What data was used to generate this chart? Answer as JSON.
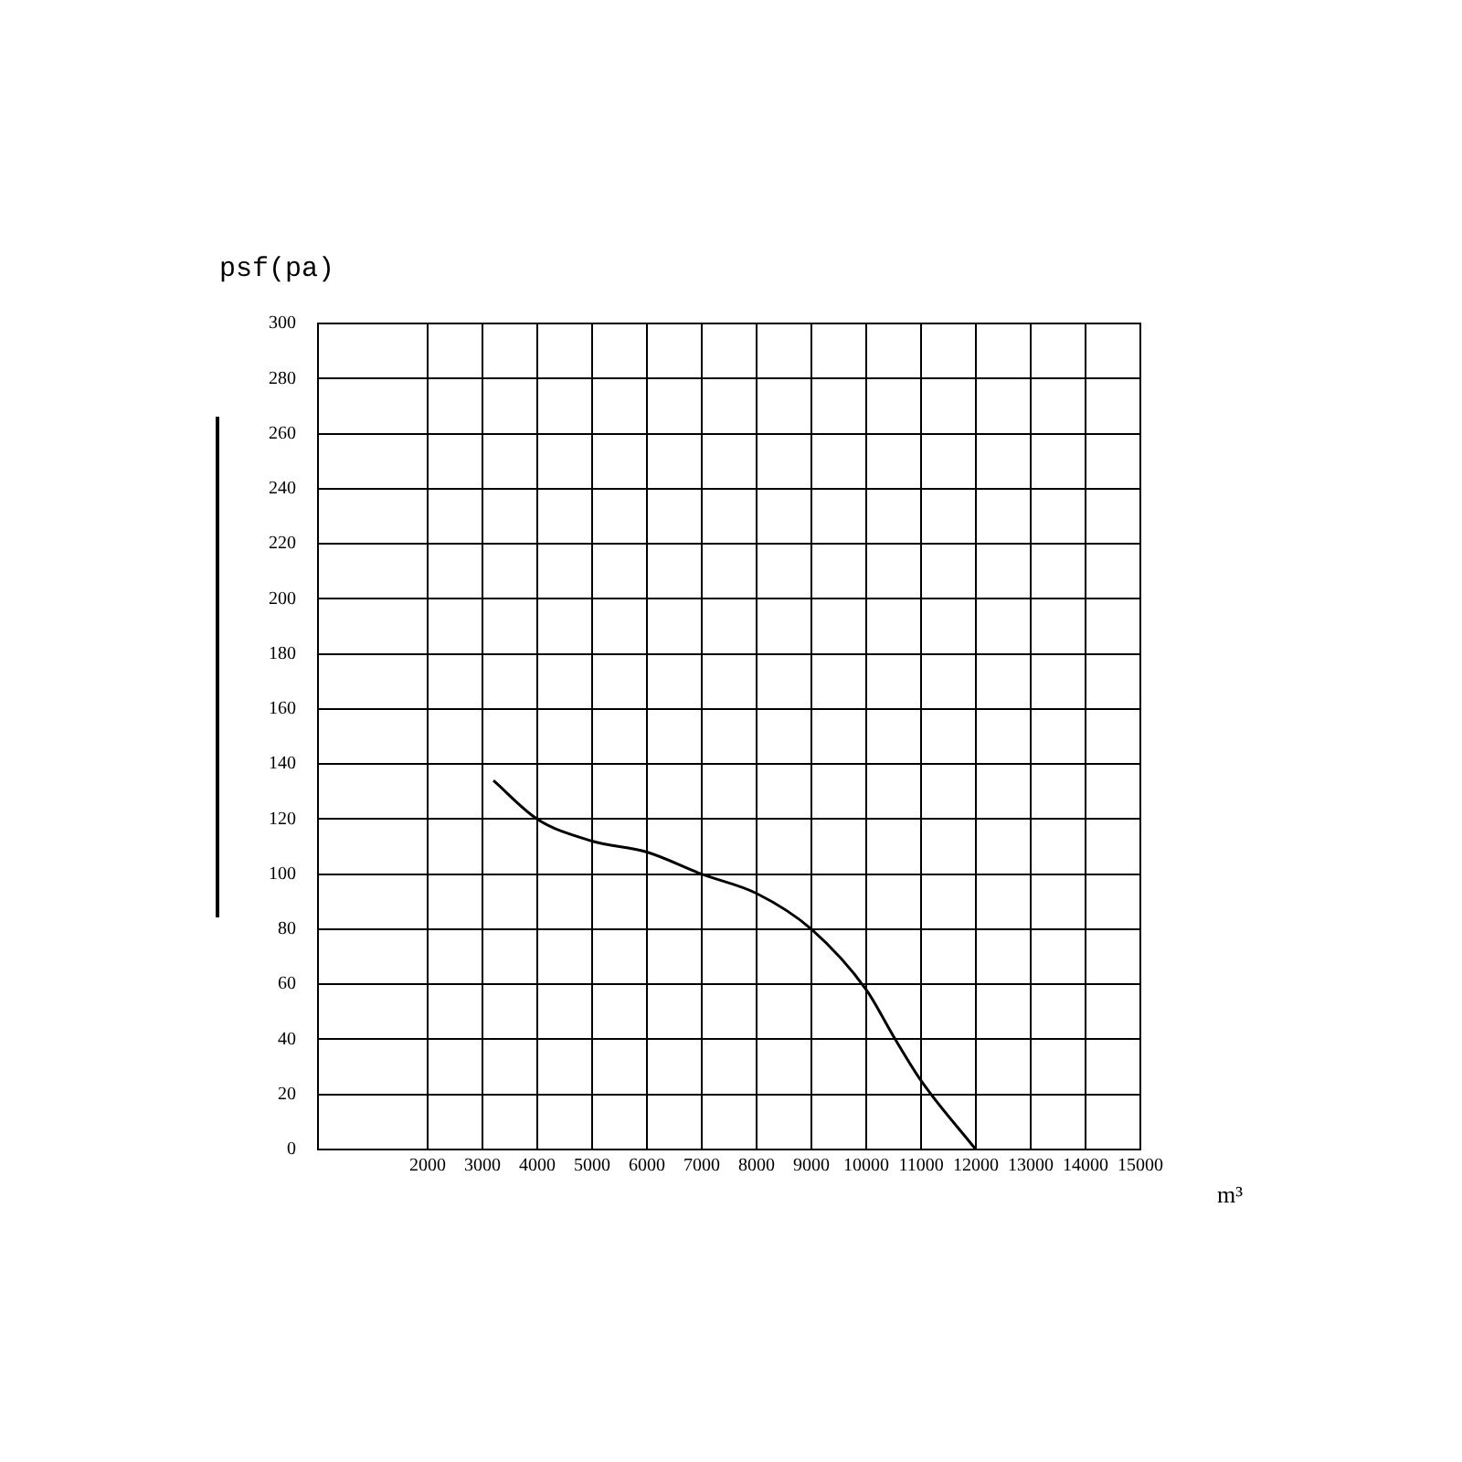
{
  "chart_data": {
    "type": "line",
    "xlabel": "m³",
    "ylabel": "psf(pa)",
    "x": [
      3200,
      4000,
      5000,
      6000,
      7000,
      8000,
      9000,
      10000,
      10500,
      11000,
      12000
    ],
    "series": [
      {
        "color": "#000000",
        "values": [
          134,
          120,
          112,
          108,
          100,
          93,
          80,
          58,
          41,
          25,
          0
        ]
      }
    ],
    "xlim": [
      0,
      15000
    ],
    "xticks": [
      {
        "value": 0,
        "label": null
      },
      2000,
      3000,
      4000,
      5000,
      6000,
      7000,
      8000,
      9000,
      10000,
      11000,
      12000,
      13000,
      14000,
      15000
    ],
    "ylim": [
      0,
      300
    ],
    "yticks": [
      0,
      20,
      40,
      60,
      80,
      100,
      120,
      140,
      160,
      180,
      200,
      220,
      240,
      260,
      280,
      300
    ],
    "grid": true,
    "legend": false,
    "marker": "none",
    "line_style": "solid"
  }
}
